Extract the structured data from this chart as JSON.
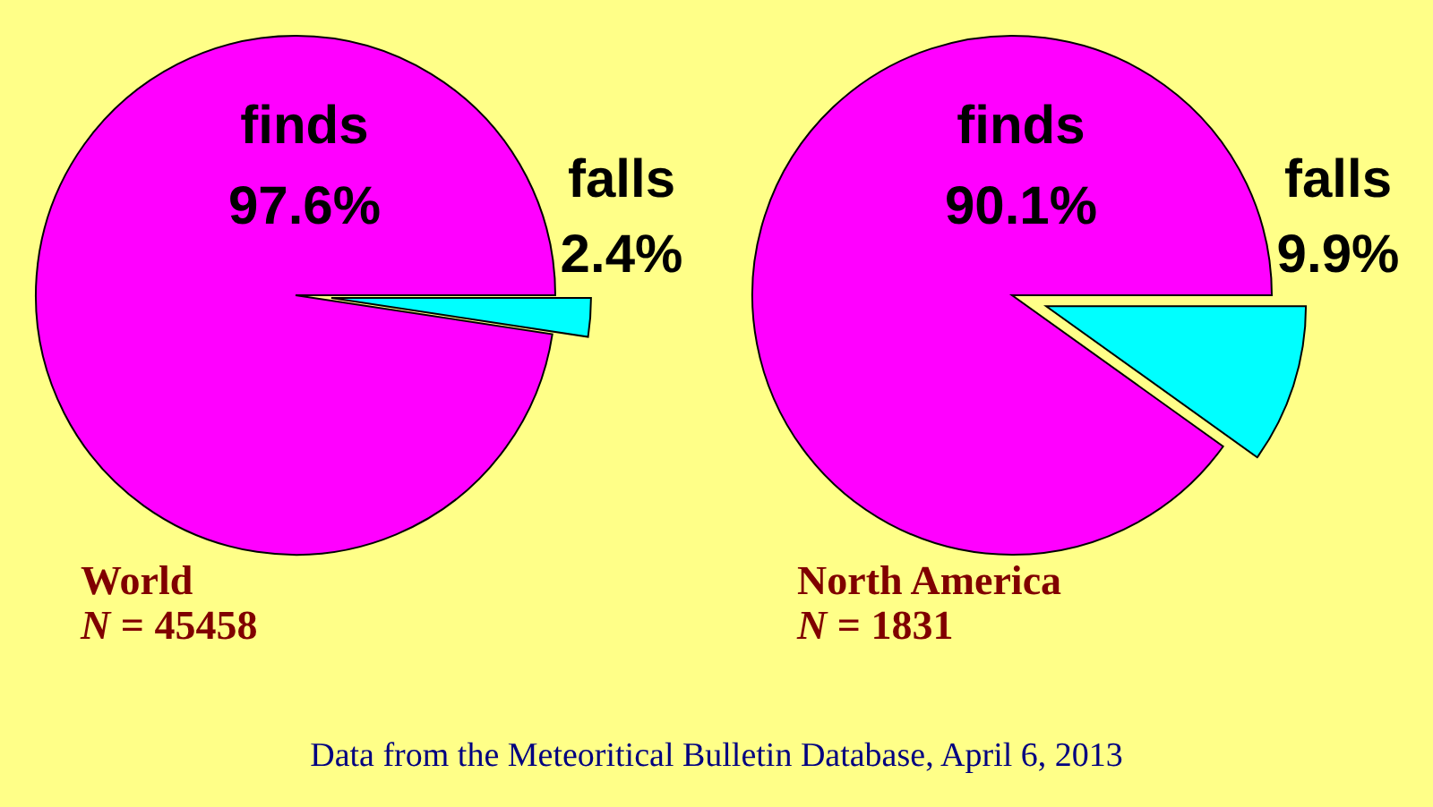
{
  "chart_data": [
    {
      "type": "pie",
      "title": "World",
      "subtitle": "N = 45458",
      "categories": [
        "finds",
        "falls"
      ],
      "values": [
        97.6,
        2.4
      ],
      "colors": [
        "#ff00ff",
        "#00ffff"
      ],
      "value_labels": [
        "97.6%",
        "2.4%"
      ],
      "annotations": [
        "Data from the Meteoritical Bulletin Database, April 6, 2013"
      ]
    },
    {
      "type": "pie",
      "title": "North America",
      "subtitle": "N = 1831",
      "categories": [
        "finds",
        "falls"
      ],
      "values": [
        90.1,
        9.9
      ],
      "colors": [
        "#ff00ff",
        "#00ffff"
      ],
      "value_labels": [
        "90.1%",
        "9.9%"
      ]
    }
  ]
}
